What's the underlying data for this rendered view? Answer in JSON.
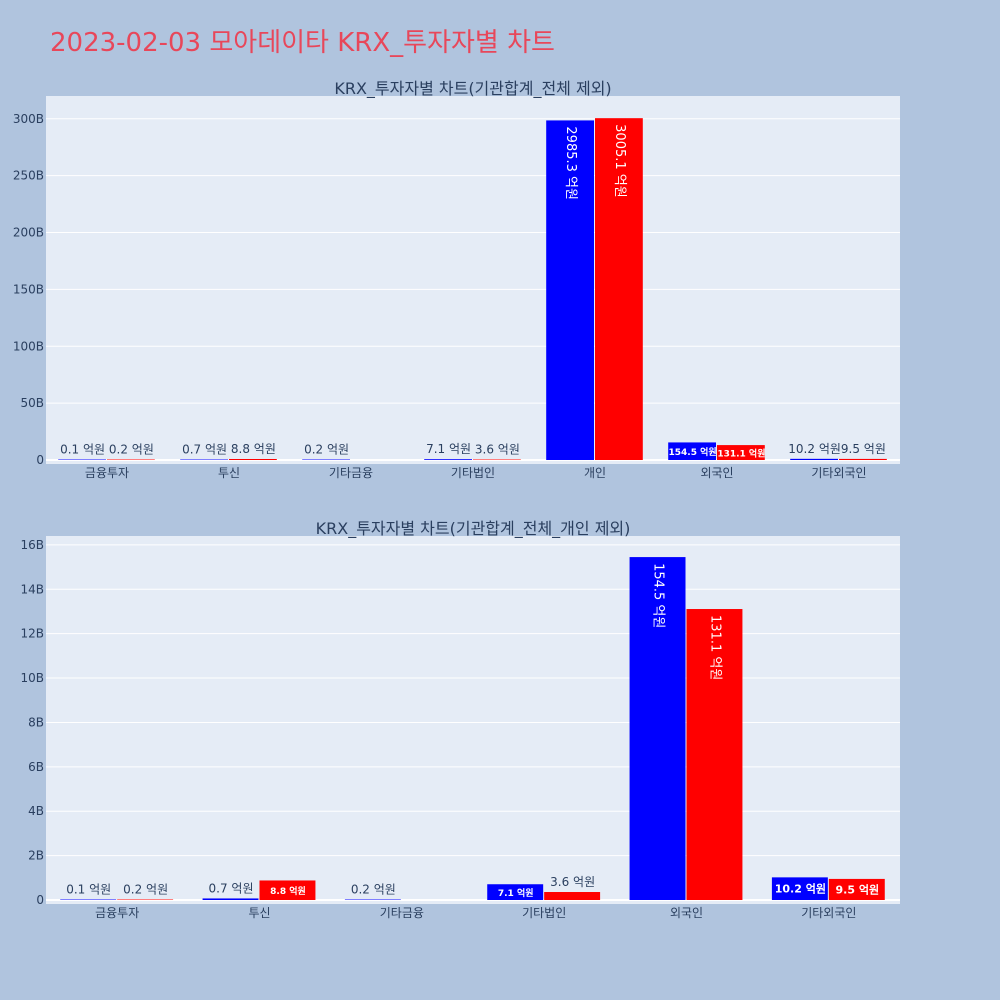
{
  "page": {
    "title": "2023-02-03 모아데이타 KRX_투자자별 차트"
  },
  "colors": {
    "series_a": "#0000ff",
    "series_b": "#ff0000",
    "plot_bg": "#e5ecf6",
    "page_bg": "#b0c4de",
    "title": "#e8475a",
    "text": "#2a3f5f"
  },
  "chart_data": [
    {
      "type": "bar",
      "title": "KRX_투자자별 차트(기관합계_전체 제외)",
      "categories": [
        "금융투자",
        "투신",
        "기타금융",
        "기타법인",
        "개인",
        "외국인",
        "기타외국인"
      ],
      "yticks": [
        "0",
        "50B",
        "100B",
        "150B",
        "200B",
        "250B",
        "300B"
      ],
      "ylim": [
        0,
        320
      ],
      "grid": true,
      "series": [
        {
          "values": [
            0.01,
            0.07,
            0.02,
            0.71,
            298.53,
            15.45,
            1.02
          ],
          "labels": [
            "0.1 억원",
            "0.7 억원",
            "0.2 억원",
            "7.1 억원",
            "2985.3 억원",
            "154.5 억원",
            "10.2 억원"
          ]
        },
        {
          "values": [
            0.02,
            0.88,
            null,
            0.36,
            300.51,
            13.11,
            0.95
          ],
          "labels": [
            "0.2 억원",
            "8.8 억원",
            "",
            "3.6 억원",
            "3005.1 억원",
            "131.1 억원",
            "9.5 억원"
          ]
        }
      ]
    },
    {
      "type": "bar",
      "title": "KRX_투자자별 차트(기관합계_전체_개인 제외)",
      "categories": [
        "금융투자",
        "투신",
        "기타금융",
        "기타법인",
        "외국인",
        "기타외국인"
      ],
      "yticks": [
        "0",
        "2B",
        "4B",
        "6B",
        "8B",
        "10B",
        "12B",
        "14B",
        "16B"
      ],
      "ylim": [
        0,
        16.4
      ],
      "grid": true,
      "series": [
        {
          "values": [
            0.01,
            0.07,
            0.02,
            0.71,
            15.45,
            1.02
          ],
          "labels": [
            "0.1 억원",
            "0.7 억원",
            "0.2 억원",
            "7.1 억원",
            "154.5 억원",
            "10.2 억원"
          ]
        },
        {
          "values": [
            0.02,
            0.88,
            null,
            0.36,
            13.11,
            0.95
          ],
          "labels": [
            "0.2 억원",
            "8.8 억원",
            "",
            "3.6 억원",
            "131.1 억원",
            "9.5 억원"
          ]
        }
      ]
    }
  ]
}
